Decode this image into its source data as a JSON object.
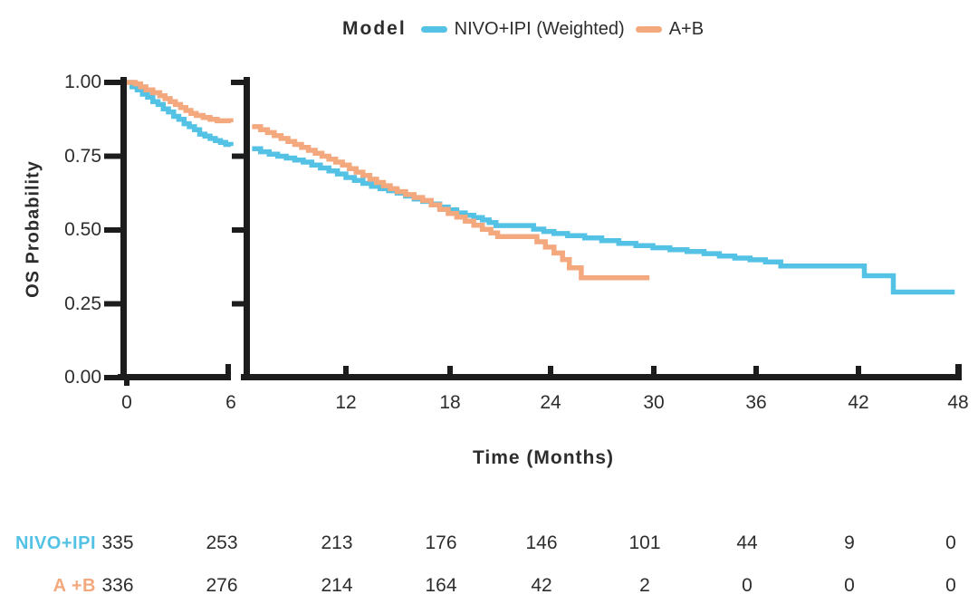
{
  "chart_data": {
    "type": "line",
    "style": "kaplan-meier-step",
    "title": "Model",
    "xlabel": "Time (Months)",
    "ylabel": "OS Probability",
    "xlim": [
      0,
      48
    ],
    "ylim": [
      0.0,
      1.0
    ],
    "x_tick_labels": [
      "0",
      "6",
      "12",
      "18",
      "24",
      "30",
      "36",
      "42",
      "48"
    ],
    "y_tick_labels": [
      "1.00",
      "0.75",
      "0.50",
      "0.25",
      "0.00"
    ],
    "axis_break_between_months": [
      6,
      6.5
    ],
    "legend_position": "top-center",
    "series": [
      {
        "name": "NIVO+IPI (Weighted)",
        "color": "#54C2E5",
        "segments": [
          [
            [
              0,
              1
            ],
            [
              0.3,
              0.985
            ],
            [
              0.6,
              0.975
            ],
            [
              0.9,
              0.96
            ],
            [
              1.2,
              0.95
            ],
            [
              1.5,
              0.935
            ],
            [
              1.8,
              0.925
            ],
            [
              2.1,
              0.91
            ],
            [
              2.4,
              0.9
            ],
            [
              2.7,
              0.885
            ],
            [
              3,
              0.875
            ],
            [
              3.3,
              0.86
            ],
            [
              3.6,
              0.85
            ],
            [
              3.9,
              0.84
            ],
            [
              4.2,
              0.825
            ],
            [
              4.5,
              0.818
            ],
            [
              4.8,
              0.81
            ],
            [
              5.1,
              0.803
            ],
            [
              5.4,
              0.797
            ],
            [
              5.7,
              0.79
            ],
            [
              6,
              0.785
            ]
          ],
          [
            [
              6.5,
              0.775
            ],
            [
              7,
              0.765
            ],
            [
              7.5,
              0.757
            ],
            [
              8,
              0.75
            ],
            [
              8.5,
              0.744
            ],
            [
              9,
              0.737
            ],
            [
              9.5,
              0.73
            ],
            [
              10,
              0.72
            ],
            [
              10.5,
              0.71
            ],
            [
              11,
              0.7
            ],
            [
              11.5,
              0.69
            ],
            [
              12,
              0.678
            ],
            [
              12.5,
              0.668
            ],
            [
              13,
              0.658
            ],
            [
              13.5,
              0.648
            ],
            [
              14,
              0.64
            ],
            [
              14.5,
              0.633
            ],
            [
              15,
              0.625
            ],
            [
              15.5,
              0.615
            ],
            [
              16,
              0.605
            ],
            [
              16.5,
              0.597
            ],
            [
              17,
              0.588
            ],
            [
              17.5,
              0.578
            ],
            [
              18,
              0.568
            ],
            [
              18.5,
              0.558
            ],
            [
              19,
              0.55
            ],
            [
              19.5,
              0.542
            ],
            [
              20,
              0.534
            ],
            [
              20.4,
              0.525
            ],
            [
              20.8,
              0.515
            ],
            [
              23,
              0.503
            ],
            [
              23.6,
              0.495
            ],
            [
              24.2,
              0.488
            ],
            [
              25,
              0.481
            ],
            [
              26,
              0.473
            ],
            [
              27,
              0.464
            ],
            [
              28,
              0.455
            ],
            [
              29,
              0.447
            ],
            [
              30,
              0.44
            ],
            [
              31,
              0.433
            ],
            [
              32,
              0.427
            ],
            [
              33,
              0.42
            ],
            [
              33.9,
              0.412
            ],
            [
              34.8,
              0.405
            ],
            [
              35.7,
              0.399
            ],
            [
              36.6,
              0.392
            ],
            [
              37.5,
              0.378
            ],
            [
              42.4,
              0.345
            ],
            [
              44.1,
              0.29
            ],
            [
              47.7,
              0.29
            ]
          ]
        ]
      },
      {
        "name": "A+B",
        "color": "#F4A87E",
        "segments": [
          [
            [
              0,
              1
            ],
            [
              0.5,
              0.995
            ],
            [
              0.8,
              0.985
            ],
            [
              1.1,
              0.975
            ],
            [
              1.5,
              0.965
            ],
            [
              1.9,
              0.955
            ],
            [
              2.2,
              0.945
            ],
            [
              2.5,
              0.935
            ],
            [
              2.8,
              0.925
            ],
            [
              3.1,
              0.915
            ],
            [
              3.4,
              0.905
            ],
            [
              3.7,
              0.895
            ],
            [
              4,
              0.888
            ],
            [
              4.4,
              0.881
            ],
            [
              4.8,
              0.875
            ],
            [
              5.2,
              0.87
            ],
            [
              6,
              0.865
            ]
          ],
          [
            [
              6.5,
              0.85
            ],
            [
              7,
              0.84
            ],
            [
              7.4,
              0.83
            ],
            [
              7.8,
              0.82
            ],
            [
              8.2,
              0.81
            ],
            [
              8.6,
              0.8
            ],
            [
              9,
              0.79
            ],
            [
              9.4,
              0.78
            ],
            [
              9.8,
              0.77
            ],
            [
              10.2,
              0.76
            ],
            [
              10.6,
              0.75
            ],
            [
              11,
              0.74
            ],
            [
              11.4,
              0.73
            ],
            [
              11.8,
              0.72
            ],
            [
              12.2,
              0.708
            ],
            [
              12.6,
              0.696
            ],
            [
              13,
              0.685
            ],
            [
              13.4,
              0.672
            ],
            [
              13.8,
              0.661
            ],
            [
              14.2,
              0.65
            ],
            [
              14.6,
              0.64
            ],
            [
              15,
              0.63
            ],
            [
              15.5,
              0.62
            ],
            [
              16,
              0.61
            ],
            [
              16.5,
              0.6
            ],
            [
              17,
              0.585
            ],
            [
              17.5,
              0.57
            ],
            [
              18,
              0.556
            ],
            [
              18.5,
              0.544
            ],
            [
              19,
              0.53
            ],
            [
              19.5,
              0.516
            ],
            [
              20,
              0.502
            ],
            [
              20.5,
              0.49
            ],
            [
              20.9,
              0.478
            ],
            [
              23.2,
              0.46
            ],
            [
              23.7,
              0.442
            ],
            [
              24.2,
              0.422
            ],
            [
              24.7,
              0.4
            ],
            [
              25.1,
              0.372
            ],
            [
              25.8,
              0.338
            ],
            [
              29.8,
              0.338
            ]
          ]
        ]
      }
    ],
    "risk_table": {
      "time_points": [
        0,
        6,
        12,
        18,
        24,
        30,
        36,
        42,
        48
      ],
      "rows": [
        {
          "label": "NIVO+IPI",
          "color": "#54C2E5",
          "values": [
            335,
            253,
            213,
            176,
            146,
            101,
            44,
            9,
            0
          ]
        },
        {
          "label": "A +B",
          "color": "#F4A87E",
          "values": [
            336,
            276,
            214,
            164,
            42,
            2,
            0,
            0,
            0
          ]
        }
      ]
    }
  }
}
